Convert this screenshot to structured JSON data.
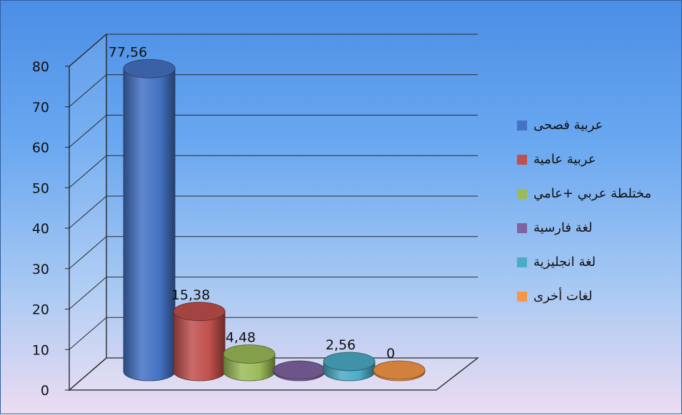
{
  "chart_data": {
    "type": "bar",
    "title": "",
    "xlabel": "",
    "ylabel": "",
    "ylim": [
      0,
      80
    ],
    "yticks": [
      0,
      10,
      20,
      30,
      40,
      50,
      60,
      70,
      80
    ],
    "grid": true,
    "legend_position": "right",
    "categories": [
      "عربية فصحى",
      "عربية عامية",
      "مختلطة عربي +عامي",
      "لغة فارسية",
      "لغة انجليزية",
      "لغات أخرى"
    ],
    "values": [
      77.56,
      15.38,
      4.48,
      0,
      2.56,
      0
    ],
    "data_labels": [
      "77,56",
      "15,38",
      "4,48",
      "",
      "2,56",
      "0"
    ],
    "colors": [
      "#4472c4",
      "#c0504d",
      "#9bbb59",
      "#8064a2",
      "#4bacc6",
      "#f79646"
    ]
  }
}
